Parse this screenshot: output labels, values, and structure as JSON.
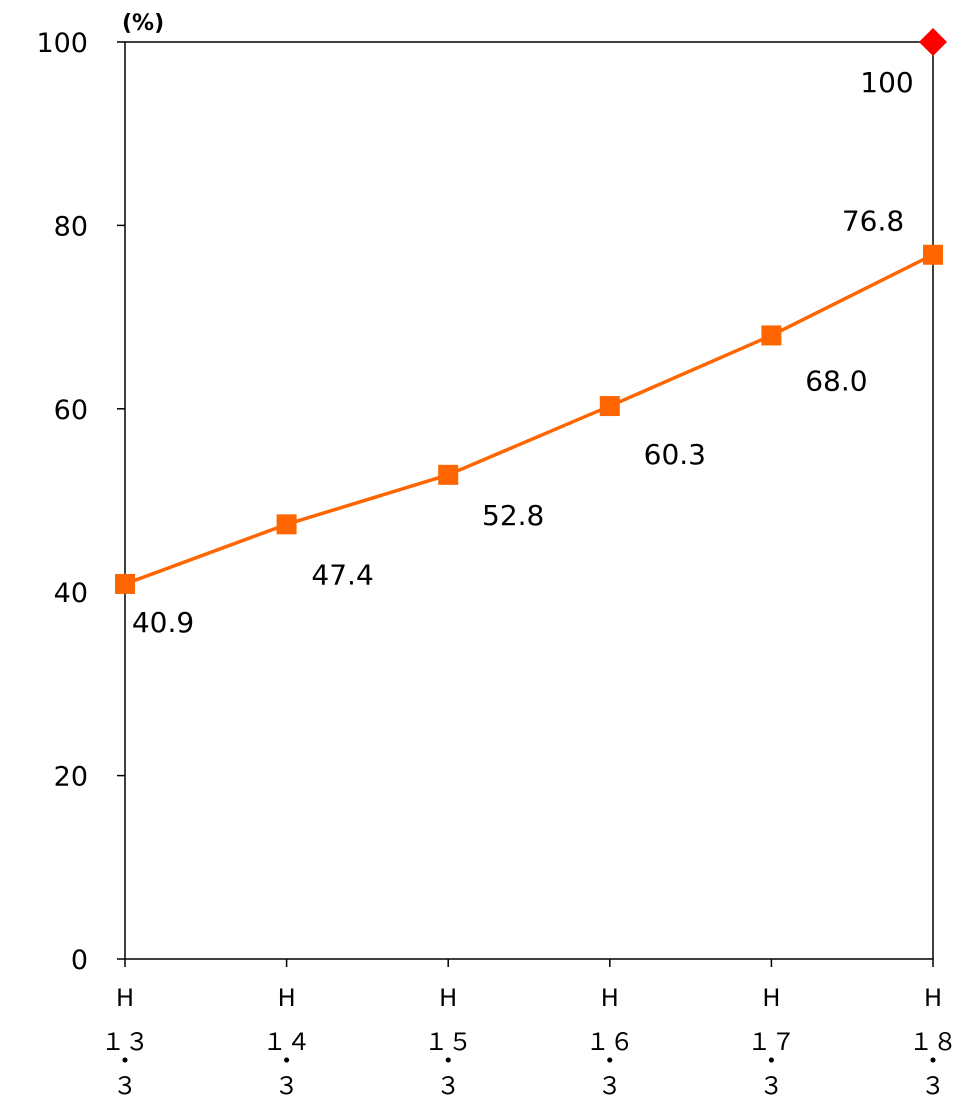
{
  "chart_data": {
    "type": "line",
    "unit_label": "(%)",
    "ylim": [
      0,
      100
    ],
    "y_ticks": [
      0,
      20,
      40,
      60,
      80,
      100
    ],
    "x_label_lines": [
      [
        "H",
        "１３",
        "・",
        "３"
      ],
      [
        "H",
        "１４",
        "・",
        "３"
      ],
      [
        "H",
        "１５",
        "・",
        "３"
      ],
      [
        "H",
        "１６",
        "・",
        "３"
      ],
      [
        "H",
        "１７",
        "・",
        "３"
      ],
      [
        "H",
        "１８",
        "・",
        "３"
      ]
    ],
    "series": [
      {
        "values": [
          40.9,
          47.4,
          52.8,
          60.3,
          68.0,
          76.8
        ],
        "labels": [
          "40.9",
          "47.4",
          "52.8",
          "60.3",
          "68.0",
          "76.8"
        ],
        "color": "#FF6600",
        "marker": "square"
      },
      {
        "points": [
          {
            "index": 5,
            "value": 100
          }
        ],
        "labels": [
          "100"
        ],
        "color": "#FF0000",
        "marker": "diamond"
      }
    ],
    "grid": false,
    "legend": "none"
  }
}
